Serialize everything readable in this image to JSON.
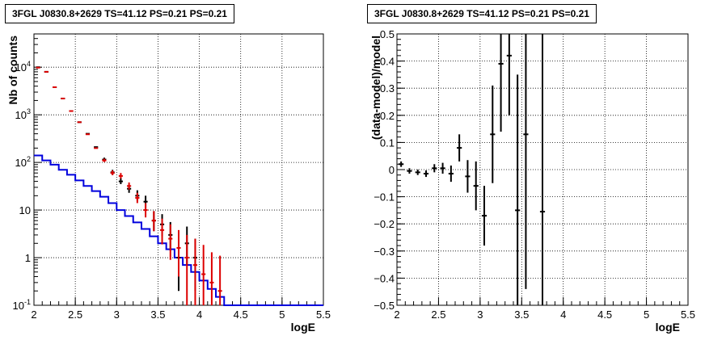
{
  "panels": {
    "left": {
      "title": "3FGL J0830.8+2629 TS=41.12 PS=0.21 PS=0.21"
    },
    "right": {
      "title": "3FGL J0830.8+2629 TS=41.12 PS=0.21 PS=0.21"
    }
  },
  "colors": {
    "data": "#000000",
    "model": "#dd0000",
    "background": "#0000dd",
    "grid": "#000000"
  },
  "chart_data": [
    {
      "type": "scatter",
      "panel": "left",
      "xlabel": "logE",
      "ylabel": "Nb of counts",
      "xlim": [
        2,
        5.5
      ],
      "ylim": [
        0.1,
        50000
      ],
      "yscale": "log",
      "grid": true,
      "x_ticks": [
        "2",
        "2.5",
        "3",
        "3.5",
        "4",
        "4.5",
        "5",
        "5.5"
      ],
      "y_ticks": [
        "10^{-1}",
        "1",
        "10",
        "10^{2}",
        "10^{3}",
        "10^{4}"
      ],
      "bin_width": 0.1,
      "series": [
        {
          "role": "data",
          "x": [
            2.05,
            2.15,
            2.25,
            2.35,
            2.45,
            2.55,
            2.65,
            2.75,
            2.85,
            2.95,
            3.05,
            3.15,
            3.25,
            3.35,
            3.45,
            3.55,
            3.65,
            3.75,
            3.85,
            3.95
          ],
          "y": [
            10000,
            8000,
            3800,
            2200,
            1200,
            700,
            400,
            210,
            115,
            62,
            40,
            28,
            20,
            15,
            6,
            5,
            3,
            1,
            2,
            1
          ],
          "err_lo": [
            0,
            0,
            0,
            0,
            0,
            0,
            0,
            0,
            9,
            7,
            5,
            5,
            4,
            4,
            2.4,
            2.2,
            1.6,
            0.8,
            1.3,
            0.8
          ],
          "err_hi": [
            0,
            0,
            0,
            0,
            0,
            0,
            0,
            0,
            11,
            8,
            7,
            6,
            6,
            5,
            3.5,
            3.2,
            2.6,
            1.5,
            2.5,
            1.5
          ]
        },
        {
          "role": "model",
          "x": [
            2.05,
            2.15,
            2.25,
            2.35,
            2.45,
            2.55,
            2.65,
            2.75,
            2.85,
            2.95,
            3.05,
            3.15,
            3.25,
            3.35,
            3.45,
            3.55,
            3.65,
            3.75,
            3.85,
            3.95,
            4.05,
            4.15,
            4.25
          ],
          "y": [
            9800,
            8000,
            3800,
            2200,
            1200,
            700,
            390,
            200,
            110,
            60,
            52,
            32,
            18,
            10,
            6,
            3.8,
            2.5,
            1.6,
            1.0,
            0.7,
            0.45,
            0.3,
            0.2
          ],
          "err_lo": [
            0,
            0,
            0,
            0,
            0,
            0,
            0,
            0,
            8,
            6,
            6,
            5,
            4,
            3,
            2.4,
            1.9,
            1.6,
            1.2,
            0.9,
            0.6,
            0.35,
            0.2,
            0.13
          ],
          "err_hi": [
            0,
            0,
            0,
            0,
            0,
            0,
            0,
            0,
            10,
            8,
            8,
            6,
            5,
            4,
            3.5,
            2.8,
            2.5,
            2.2,
            2.0,
            1.8,
            1.4,
            1.0,
            0.9
          ]
        },
        {
          "role": "background",
          "type": "step",
          "x_edges": [
            2.0,
            2.1,
            2.2,
            2.3,
            2.4,
            2.5,
            2.6,
            2.7,
            2.8,
            2.9,
            3.0,
            3.1,
            3.2,
            3.3,
            3.4,
            3.5,
            3.6,
            3.7,
            3.8,
            3.9,
            4.0,
            4.1,
            4.2,
            4.3,
            5.5
          ],
          "y": [
            140,
            110,
            90,
            70,
            55,
            42,
            32,
            25,
            19,
            14,
            10,
            7.5,
            5.5,
            4,
            2.8,
            2,
            1.5,
            1.0,
            0.7,
            0.5,
            0.33,
            0.22,
            0.15,
            0.1
          ]
        }
      ]
    },
    {
      "type": "scatter",
      "panel": "right",
      "xlabel": "logE",
      "ylabel": "(data-model)/model",
      "xlim": [
        2,
        5.5
      ],
      "ylim": [
        -0.5,
        0.5
      ],
      "grid": true,
      "x_ticks": [
        "2",
        "2.5",
        "3",
        "3.5",
        "4",
        "4.5",
        "5",
        "5.5"
      ],
      "y_ticks": [
        "−0.5",
        "−0.4",
        "−0.3",
        "−0.2",
        "−0.1",
        "0",
        "0.1",
        "0.2",
        "0.3",
        "0.4",
        "0.5"
      ],
      "bin_width": 0.1,
      "series": [
        {
          "role": "residual",
          "x": [
            2.05,
            2.15,
            2.25,
            2.35,
            2.45,
            2.55,
            2.65,
            2.75,
            2.85,
            2.95,
            3.05,
            3.15,
            3.25,
            3.35,
            3.45,
            3.55,
            3.75
          ],
          "y": [
            0.02,
            -0.005,
            -0.01,
            -0.015,
            0.005,
            0.005,
            -0.015,
            0.08,
            -0.025,
            -0.06,
            -0.17,
            0.13,
            0.39,
            0.42,
            -0.15,
            0.13,
            -0.155
          ],
          "err": [
            0.01,
            0.01,
            0.01,
            0.012,
            0.015,
            0.02,
            0.03,
            0.05,
            0.06,
            0.09,
            0.11,
            0.18,
            0.25,
            0.22,
            0.5,
            0.57,
            0.75
          ]
        }
      ]
    }
  ]
}
